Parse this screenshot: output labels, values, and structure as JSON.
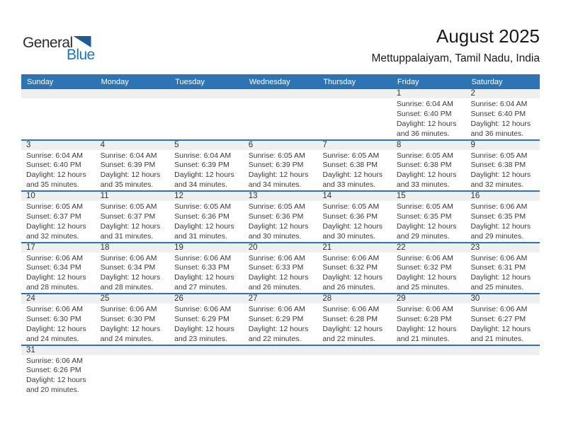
{
  "logo": {
    "part1": "General",
    "part2": "Blue"
  },
  "header": {
    "title": "August 2025",
    "subtitle": "Mettuppalaiyam, Tamil Nadu, India"
  },
  "colors": {
    "header_blue": "#2E74B5",
    "band_gray": "#EFEFEF",
    "logo_blue": "#1B75BC",
    "logo_blue_dark": "#1E5C97",
    "text_dark": "#3A3A3A"
  },
  "weekdays": [
    "Sunday",
    "Monday",
    "Tuesday",
    "Wednesday",
    "Thursday",
    "Friday",
    "Saturday"
  ],
  "calendar": {
    "weeks": [
      [
        null,
        null,
        null,
        null,
        null,
        {
          "day": "1",
          "sunrise": "Sunrise: 6:04 AM",
          "sunset": "Sunset: 6:40 PM",
          "daylight": [
            "Daylight: 12 hours",
            "and 36 minutes."
          ]
        },
        {
          "day": "2",
          "sunrise": "Sunrise: 6:04 AM",
          "sunset": "Sunset: 6:40 PM",
          "daylight": [
            "Daylight: 12 hours",
            "and 36 minutes."
          ]
        }
      ],
      [
        {
          "day": "3",
          "sunrise": "Sunrise: 6:04 AM",
          "sunset": "Sunset: 6:40 PM",
          "daylight": [
            "Daylight: 12 hours",
            "and 35 minutes."
          ]
        },
        {
          "day": "4",
          "sunrise": "Sunrise: 6:04 AM",
          "sunset": "Sunset: 6:39 PM",
          "daylight": [
            "Daylight: 12 hours",
            "and 35 minutes."
          ]
        },
        {
          "day": "5",
          "sunrise": "Sunrise: 6:04 AM",
          "sunset": "Sunset: 6:39 PM",
          "daylight": [
            "Daylight: 12 hours",
            "and 34 minutes."
          ]
        },
        {
          "day": "6",
          "sunrise": "Sunrise: 6:05 AM",
          "sunset": "Sunset: 6:39 PM",
          "daylight": [
            "Daylight: 12 hours",
            "and 34 minutes."
          ]
        },
        {
          "day": "7",
          "sunrise": "Sunrise: 6:05 AM",
          "sunset": "Sunset: 6:38 PM",
          "daylight": [
            "Daylight: 12 hours",
            "and 33 minutes."
          ]
        },
        {
          "day": "8",
          "sunrise": "Sunrise: 6:05 AM",
          "sunset": "Sunset: 6:38 PM",
          "daylight": [
            "Daylight: 12 hours",
            "and 33 minutes."
          ]
        },
        {
          "day": "9",
          "sunrise": "Sunrise: 6:05 AM",
          "sunset": "Sunset: 6:38 PM",
          "daylight": [
            "Daylight: 12 hours",
            "and 32 minutes."
          ]
        }
      ],
      [
        {
          "day": "10",
          "sunrise": "Sunrise: 6:05 AM",
          "sunset": "Sunset: 6:37 PM",
          "daylight": [
            "Daylight: 12 hours",
            "and 32 minutes."
          ]
        },
        {
          "day": "11",
          "sunrise": "Sunrise: 6:05 AM",
          "sunset": "Sunset: 6:37 PM",
          "daylight": [
            "Daylight: 12 hours",
            "and 31 minutes."
          ]
        },
        {
          "day": "12",
          "sunrise": "Sunrise: 6:05 AM",
          "sunset": "Sunset: 6:36 PM",
          "daylight": [
            "Daylight: 12 hours",
            "and 31 minutes."
          ]
        },
        {
          "day": "13",
          "sunrise": "Sunrise: 6:05 AM",
          "sunset": "Sunset: 6:36 PM",
          "daylight": [
            "Daylight: 12 hours",
            "and 30 minutes."
          ]
        },
        {
          "day": "14",
          "sunrise": "Sunrise: 6:05 AM",
          "sunset": "Sunset: 6:36 PM",
          "daylight": [
            "Daylight: 12 hours",
            "and 30 minutes."
          ]
        },
        {
          "day": "15",
          "sunrise": "Sunrise: 6:05 AM",
          "sunset": "Sunset: 6:35 PM",
          "daylight": [
            "Daylight: 12 hours",
            "and 29 minutes."
          ]
        },
        {
          "day": "16",
          "sunrise": "Sunrise: 6:06 AM",
          "sunset": "Sunset: 6:35 PM",
          "daylight": [
            "Daylight: 12 hours",
            "and 29 minutes."
          ]
        }
      ],
      [
        {
          "day": "17",
          "sunrise": "Sunrise: 6:06 AM",
          "sunset": "Sunset: 6:34 PM",
          "daylight": [
            "Daylight: 12 hours",
            "and 28 minutes."
          ]
        },
        {
          "day": "18",
          "sunrise": "Sunrise: 6:06 AM",
          "sunset": "Sunset: 6:34 PM",
          "daylight": [
            "Daylight: 12 hours",
            "and 28 minutes."
          ]
        },
        {
          "day": "19",
          "sunrise": "Sunrise: 6:06 AM",
          "sunset": "Sunset: 6:33 PM",
          "daylight": [
            "Daylight: 12 hours",
            "and 27 minutes."
          ]
        },
        {
          "day": "20",
          "sunrise": "Sunrise: 6:06 AM",
          "sunset": "Sunset: 6:33 PM",
          "daylight": [
            "Daylight: 12 hours",
            "and 26 minutes."
          ]
        },
        {
          "day": "21",
          "sunrise": "Sunrise: 6:06 AM",
          "sunset": "Sunset: 6:32 PM",
          "daylight": [
            "Daylight: 12 hours",
            "and 26 minutes."
          ]
        },
        {
          "day": "22",
          "sunrise": "Sunrise: 6:06 AM",
          "sunset": "Sunset: 6:32 PM",
          "daylight": [
            "Daylight: 12 hours",
            "and 25 minutes."
          ]
        },
        {
          "day": "23",
          "sunrise": "Sunrise: 6:06 AM",
          "sunset": "Sunset: 6:31 PM",
          "daylight": [
            "Daylight: 12 hours",
            "and 25 minutes."
          ]
        }
      ],
      [
        {
          "day": "24",
          "sunrise": "Sunrise: 6:06 AM",
          "sunset": "Sunset: 6:30 PM",
          "daylight": [
            "Daylight: 12 hours",
            "and 24 minutes."
          ]
        },
        {
          "day": "25",
          "sunrise": "Sunrise: 6:06 AM",
          "sunset": "Sunset: 6:30 PM",
          "daylight": [
            "Daylight: 12 hours",
            "and 24 minutes."
          ]
        },
        {
          "day": "26",
          "sunrise": "Sunrise: 6:06 AM",
          "sunset": "Sunset: 6:29 PM",
          "daylight": [
            "Daylight: 12 hours",
            "and 23 minutes."
          ]
        },
        {
          "day": "27",
          "sunrise": "Sunrise: 6:06 AM",
          "sunset": "Sunset: 6:29 PM",
          "daylight": [
            "Daylight: 12 hours",
            "and 22 minutes."
          ]
        },
        {
          "day": "28",
          "sunrise": "Sunrise: 6:06 AM",
          "sunset": "Sunset: 6:28 PM",
          "daylight": [
            "Daylight: 12 hours",
            "and 22 minutes."
          ]
        },
        {
          "day": "29",
          "sunrise": "Sunrise: 6:06 AM",
          "sunset": "Sunset: 6:28 PM",
          "daylight": [
            "Daylight: 12 hours",
            "and 21 minutes."
          ]
        },
        {
          "day": "30",
          "sunrise": "Sunrise: 6:06 AM",
          "sunset": "Sunset: 6:27 PM",
          "daylight": [
            "Daylight: 12 hours",
            "and 21 minutes."
          ]
        }
      ],
      [
        {
          "day": "31",
          "sunrise": "Sunrise: 6:06 AM",
          "sunset": "Sunset: 6:26 PM",
          "daylight": [
            "Daylight: 12 hours",
            "and 20 minutes."
          ]
        },
        null,
        null,
        null,
        null,
        null,
        null
      ]
    ]
  }
}
